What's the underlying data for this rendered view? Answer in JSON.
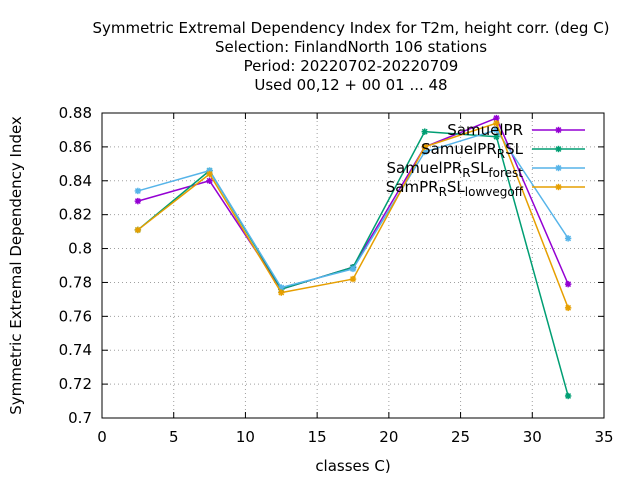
{
  "chart_data": {
    "type": "line",
    "title_lines": [
      "Symmetric Extremal Dependency Index  for T2m, height corr. (deg C)",
      "Selection: FinlandNorth    106 stations",
      "Period: 20220702-20220709",
      "Used  00,12  + 00 01 ... 48"
    ],
    "xlabel": "classes C)",
    "ylabel": "Symmetric Extremal Dependency Index",
    "xlim": [
      0,
      35
    ],
    "ylim": [
      0.7,
      0.88
    ],
    "xticks": [
      0,
      5,
      10,
      15,
      20,
      25,
      30,
      35
    ],
    "yticks": [
      0.7,
      0.72,
      0.74,
      0.76,
      0.78,
      0.8,
      0.82,
      0.84,
      0.86,
      0.88
    ],
    "xtick_labels": [
      "0",
      "5",
      "10",
      "15",
      "20",
      "25",
      "30",
      "35"
    ],
    "ytick_labels": [
      "0.7",
      "0.72",
      "0.74",
      "0.76",
      "0.78",
      "0.8",
      "0.82",
      "0.84",
      "0.86",
      "0.88"
    ],
    "grid": true,
    "legend_position": "top-right",
    "x": [
      2.5,
      7.5,
      12.5,
      17.5,
      22.5,
      27.5,
      32.5
    ],
    "series": [
      {
        "name": "SamuelPR",
        "legend_parts": [
          {
            "t": "SamuelPR",
            "s": "normal"
          }
        ],
        "color": "#9400d3",
        "values": [
          0.828,
          0.84,
          0.776,
          0.789,
          0.86,
          0.877,
          0.779
        ]
      },
      {
        "name": "SamuelPR_RSL",
        "legend_parts": [
          {
            "t": "SamuelPR",
            "s": "normal"
          },
          {
            "t": "R",
            "s": "sub"
          },
          {
            "t": "SL",
            "s": "normal"
          }
        ],
        "color": "#009e73",
        "values": [
          0.811,
          0.846,
          0.776,
          0.789,
          0.869,
          0.866,
          0.713
        ]
      },
      {
        "name": "SamuelPR_RSL_forest",
        "legend_parts": [
          {
            "t": "SamuelPR",
            "s": "normal"
          },
          {
            "t": "R",
            "s": "sub"
          },
          {
            "t": "SL",
            "s": "normal"
          },
          {
            "t": "forest",
            "s": "sub"
          }
        ],
        "color": "#56b4e9",
        "values": [
          0.834,
          0.846,
          0.777,
          0.788,
          0.857,
          0.87,
          0.806
        ]
      },
      {
        "name": "SamPR_RSL_lowvegoff",
        "legend_parts": [
          {
            "t": "SamPR",
            "s": "normal"
          },
          {
            "t": "R",
            "s": "sub"
          },
          {
            "t": "SL",
            "s": "normal"
          },
          {
            "t": "lowvegoff",
            "s": "sub"
          }
        ],
        "color": "#e69f00",
        "values": [
          0.811,
          0.844,
          0.774,
          0.782,
          0.86,
          0.874,
          0.765
        ]
      }
    ]
  }
}
